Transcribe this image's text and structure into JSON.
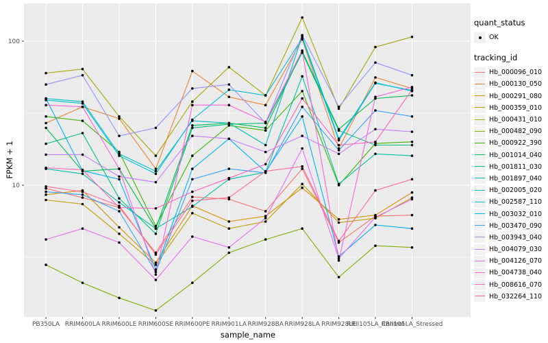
{
  "figure": {
    "panel_background": "#EBEBEB",
    "grid_color": "#FFFFFF",
    "point_color": "#000000",
    "tick_color": "#333333",
    "tick_label_color": "#4D4D4D",
    "axis_title_color": "#000000",
    "legend_key_background": "#F2F2F2"
  },
  "legend": {
    "quant_status_title": "quant_status",
    "quant_status_items": [
      {
        "label": "OK",
        "symbol": "point"
      }
    ],
    "tracking_id_title": "tracking_id"
  },
  "chart_data": {
    "type": "line",
    "title": "",
    "xlabel": "sample_name",
    "ylabel": "FPKM + 1",
    "y_scale": "log10",
    "y_ticks": [
      10,
      100
    ],
    "y_minor_ticks": [
      3.162,
      31.62
    ],
    "ylim": [
      1.2,
      180
    ],
    "grid": true,
    "legend_position": "right",
    "categories": [
      "PB350LA",
      "RRIM600LA",
      "RRIM600LE",
      "RRIM600SE",
      "RRIM600PE",
      "RRIM901LA",
      "RRIM928BA",
      "RRIM928LA",
      "RRIM928LE",
      "RRII105LA_Control",
      "RRII105LA_Stressed"
    ],
    "series": [
      {
        "name": "Hb_000096_010",
        "color": "#F8766D",
        "values": [
          9.5,
          8.2,
          7.0,
          3.4,
          8.3,
          8.0,
          6.6,
          13,
          4.0,
          6.1,
          6.2
        ]
      },
      {
        "name": "Hb_000130_050",
        "color": "#EA8331",
        "values": [
          27,
          35,
          29,
          13,
          62,
          41,
          36,
          103,
          18,
          56,
          47
        ]
      },
      {
        "name": "Hb_000291_080",
        "color": "#D89000",
        "values": [
          8.6,
          9.2,
          5.1,
          2.9,
          7.2,
          5.6,
          6.1,
          9.6,
          5.8,
          6.2,
          8.9
        ]
      },
      {
        "name": "Hb_000359_010",
        "color": "#C09B00",
        "values": [
          7.9,
          7.4,
          4.6,
          2.8,
          6.4,
          5.0,
          5.6,
          10.2,
          5.5,
          5.9,
          8.2
        ]
      },
      {
        "name": "Hb_000431_010",
        "color": "#A3A500",
        "values": [
          60,
          64,
          30,
          16,
          38,
          66,
          42,
          146,
          34,
          91,
          107
        ]
      },
      {
        "name": "Hb_000482_090",
        "color": "#7CAE00",
        "values": [
          2.8,
          2.1,
          1.65,
          1.35,
          2.1,
          3.4,
          4.2,
          5.0,
          2.3,
          3.8,
          3.7
        ]
      },
      {
        "name": "Hb_000922_390",
        "color": "#39B600",
        "values": [
          30,
          28,
          17,
          5.2,
          16,
          26,
          24,
          45,
          10,
          19.5,
          20
        ]
      },
      {
        "name": "Hb_001014_040",
        "color": "#00BB4E",
        "values": [
          25,
          12.5,
          13,
          5.0,
          26,
          27,
          25,
          85,
          24.5,
          40,
          42
        ]
      },
      {
        "name": "Hb_001811_030",
        "color": "#00BF7D",
        "values": [
          19.4,
          23,
          8.1,
          4.6,
          25,
          26.5,
          27,
          83,
          24,
          19,
          19
        ]
      },
      {
        "name": "Hb_001897_040",
        "color": "#00C1A3",
        "values": [
          13,
          12,
          7.6,
          5.0,
          7.1,
          11,
          12.3,
          57,
          10.2,
          16.5,
          16
        ]
      },
      {
        "name": "Hb_002005_020",
        "color": "#00BFC4",
        "values": [
          40,
          38,
          16.5,
          12.5,
          28,
          27,
          19,
          108,
          21,
          51.5,
          45
        ]
      },
      {
        "name": "Hb_002587_110",
        "color": "#00BBDA",
        "values": [
          39,
          37,
          16,
          12,
          28.5,
          46,
          42,
          105,
          20.5,
          51,
          45.5
        ]
      },
      {
        "name": "Hb_003032_010",
        "color": "#00B0F6",
        "values": [
          40,
          12.6,
          11,
          2.6,
          13,
          21,
          12.4,
          30,
          3.2,
          5.3,
          5.0
        ]
      },
      {
        "name": "Hb_003470_090",
        "color": "#35A2FF",
        "values": [
          9.0,
          8.6,
          6.6,
          2.5,
          11,
          13,
          12.2,
          35,
          17.5,
          33,
          30
        ]
      },
      {
        "name": "Hb_003943_040",
        "color": "#9590FF",
        "values": [
          50,
          58,
          22,
          25,
          47,
          50,
          27,
          110,
          35,
          71,
          58
        ]
      },
      {
        "name": "Hb_004079_030",
        "color": "#C77CFF",
        "values": [
          16.3,
          16.3,
          11.5,
          10.5,
          22,
          21,
          17,
          22,
          16.5,
          24.5,
          23.5
        ]
      },
      {
        "name": "Hb_004126_070",
        "color": "#E76BF3",
        "values": [
          4.2,
          5.0,
          4.0,
          2.2,
          4.4,
          3.7,
          5.9,
          18,
          3.1,
          6.0,
          8.0
        ]
      },
      {
        "name": "Hb_004738_040",
        "color": "#FA62DB",
        "values": [
          36,
          35,
          13,
          2.4,
          36,
          36,
          27.5,
          86,
          3.0,
          41,
          48
        ]
      },
      {
        "name": "Hb_008616_070",
        "color": "#FF62BC",
        "values": [
          13.2,
          12.8,
          7.0,
          6.9,
          9.0,
          11.2,
          14,
          40,
          19,
          20,
          46
        ]
      },
      {
        "name": "Hb_032264_110",
        "color": "#FF6A98",
        "values": [
          9.8,
          9.0,
          7.2,
          3.3,
          7.8,
          8.2,
          12.5,
          13.5,
          4.1,
          9.2,
          11
        ]
      }
    ]
  }
}
